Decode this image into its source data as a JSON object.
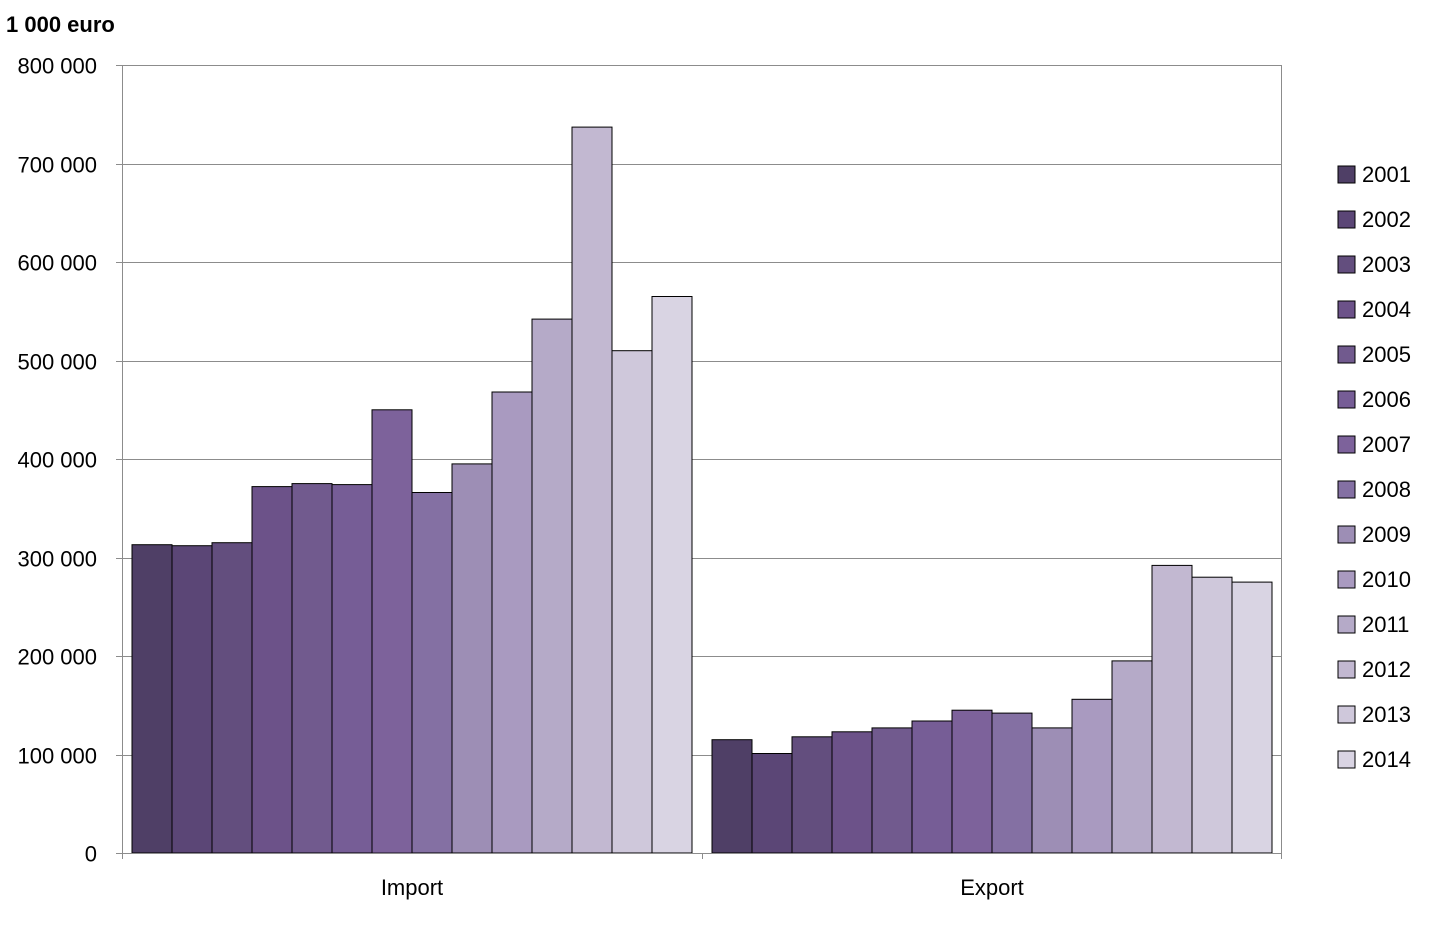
{
  "chart_data": {
    "type": "bar",
    "title": "",
    "unit_label": "1 000 euro",
    "xlabel": "",
    "ylabel": "",
    "categories": [
      "Import",
      "Export"
    ],
    "ylim": [
      0,
      800000
    ],
    "yticks": [
      0,
      100000,
      200000,
      300000,
      400000,
      500000,
      600000,
      700000,
      800000
    ],
    "ytick_labels": [
      "0",
      "100 000",
      "200 000",
      "300 000",
      "400 000",
      "500 000",
      "600 000",
      "700 000",
      "800 000"
    ],
    "grid": true,
    "legend_position": "right",
    "series": [
      {
        "name": "2001",
        "color": "#4f3f66",
        "values": [
          313000,
          115000
        ]
      },
      {
        "name": "2002",
        "color": "#5b4676",
        "values": [
          312000,
          101000
        ]
      },
      {
        "name": "2003",
        "color": "#634e7e",
        "values": [
          315000,
          118000
        ]
      },
      {
        "name": "2004",
        "color": "#6c5289",
        "values": [
          372000,
          123000
        ]
      },
      {
        "name": "2005",
        "color": "#715a8e",
        "values": [
          375000,
          127000
        ]
      },
      {
        "name": "2006",
        "color": "#765d96",
        "values": [
          374000,
          134000
        ]
      },
      {
        "name": "2007",
        "color": "#7d629b",
        "values": [
          450000,
          145000
        ]
      },
      {
        "name": "2008",
        "color": "#8470a3",
        "values": [
          366000,
          142000
        ]
      },
      {
        "name": "2009",
        "color": "#9d8eb5",
        "values": [
          395000,
          127000
        ]
      },
      {
        "name": "2010",
        "color": "#a99ac0",
        "values": [
          468000,
          156000
        ]
      },
      {
        "name": "2011",
        "color": "#b5aac8",
        "values": [
          542000,
          195000
        ]
      },
      {
        "name": "2012",
        "color": "#c2b8d1",
        "values": [
          737000,
          292000
        ]
      },
      {
        "name": "2013",
        "color": "#cfc8db",
        "values": [
          510000,
          280000
        ]
      },
      {
        "name": "2014",
        "color": "#d9d4e3",
        "values": [
          565000,
          275000
        ]
      }
    ]
  }
}
